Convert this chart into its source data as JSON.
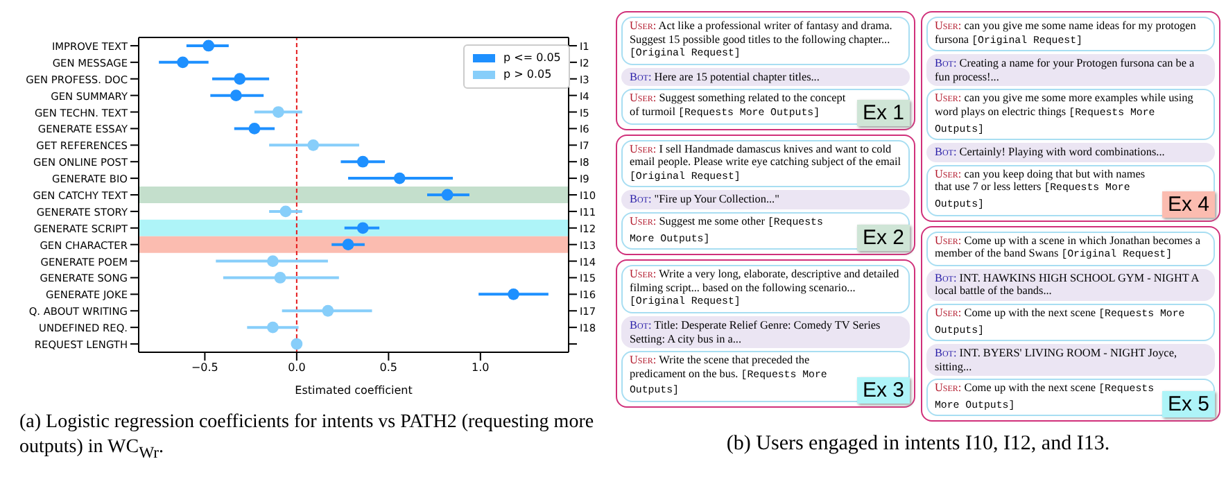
{
  "chart_data": [
    {
      "type": "scatter",
      "orientation": "horizontal",
      "categories": [
        "IMPROVE TEXT",
        "GEN MESSAGE",
        "GEN PROFESS. DOC",
        "GEN SUMMARY",
        "GEN TECHN. TEXT",
        "GENERATE ESSAY",
        "GET REFERENCES",
        "GEN ONLINE POST",
        "GENERATE BIO",
        "GEN CATCHY TEXT",
        "GENERATE STORY",
        "GENERATE SCRIPT",
        "GEN CHARACTER",
        "GENERATE POEM",
        "GENERATE SONG",
        "GENERATE JOKE",
        "Q. ABOUT WRITING",
        "UNDEFINED REQ.",
        "REQUEST LENGTH"
      ],
      "y2_categories": [
        "I1",
        "I2",
        "I3",
        "I4",
        "I5",
        "I6",
        "I7",
        "I8",
        "I9",
        "I10",
        "I11",
        "I12",
        "I13",
        "I14",
        "I15",
        "I16",
        "I17",
        "I18",
        null
      ],
      "series": [
        {
          "name": "p <= 0.05",
          "color": "#1e90ff",
          "values": [
            -0.48,
            -0.62,
            -0.31,
            -0.33,
            null,
            -0.23,
            null,
            0.36,
            0.56,
            0.82,
            null,
            0.36,
            0.28,
            null,
            null,
            1.18,
            null,
            null,
            null
          ],
          "errors": [
            [
              -0.6,
              -0.37
            ],
            [
              -0.75,
              -0.48
            ],
            [
              -0.46,
              -0.15
            ],
            [
              -0.47,
              -0.18
            ],
            null,
            [
              -0.34,
              -0.12
            ],
            null,
            [
              0.24,
              0.48
            ],
            [
              0.28,
              0.85
            ],
            [
              0.71,
              0.94
            ],
            null,
            [
              0.26,
              0.45
            ],
            [
              0.19,
              0.37
            ],
            null,
            null,
            [
              0.99,
              1.37
            ],
            null,
            null,
            null
          ]
        },
        {
          "name": "p > 0.05",
          "color": "#87cefa",
          "values": [
            null,
            null,
            null,
            null,
            -0.1,
            null,
            0.09,
            null,
            null,
            null,
            -0.06,
            null,
            null,
            -0.13,
            -0.09,
            null,
            0.17,
            -0.13,
            0
          ],
          "errors": [
            null,
            null,
            null,
            null,
            [
              -0.23,
              0.03
            ],
            null,
            [
              -0.15,
              0.34
            ],
            null,
            null,
            null,
            [
              -0.15,
              0.03
            ],
            null,
            null,
            [
              -0.44,
              0.17
            ],
            [
              -0.4,
              0.23
            ],
            null,
            [
              -0.08,
              0.41
            ],
            [
              -0.27,
              0.01
            ],
            null
          ]
        }
      ],
      "xlim": [
        -0.86,
        1.48
      ],
      "xticks": [
        {
          "value": -0.5,
          "label": "−0.5"
        },
        {
          "value": 0,
          "label": "0.0"
        },
        0.5,
        {
          "value": 1,
          "label": "1.0"
        }
      ],
      "xlabel": "Estimated coefficient",
      "marker": "circle",
      "legend": "top right",
      "ref_lines": [
        {
          "axis": "x",
          "value": 0,
          "color": "#e41a1c",
          "line_style": "dashed"
        }
      ],
      "bands": [
        {
          "axis": "y",
          "from": "GEN CATCHY TEXT",
          "to": "GEN CATCHY TEXT",
          "color": "#c4dfcc"
        },
        {
          "axis": "y",
          "from": "GENERATE SCRIPT",
          "to": "GENERATE SCRIPT",
          "color": "#aef4f8"
        },
        {
          "axis": "y",
          "from": "GEN CHARACTER",
          "to": "GEN CHARACTER",
          "color": "#fbbcb0"
        }
      ],
      "annotations": [
        "(a) Logistic regression coefficients for intents vs PATH2 (requesting more outputs) in WC$_{Wr}$."
      ]
    },
    {
      "type": "other",
      "title": "(b) Users engaged in intents I10, I12, and I13.",
      "annotations": [
        "User: Act like a professional writer of fantasy and drama. Suggest 15 possible good titles to the following chapter... [Original Request]",
        "Bot: Here are 15 potential chapter titles...",
        "User: Suggest something related to the concept of turmoil [Requests More Outputs]",
        "Ex 1",
        "User: I sell Handmade damascus knives and want to cold email people. Please write eye catching subject of the email [Original Request]",
        "Bot: \"Fire up Your Collection...\"",
        "User: Suggest me some other [Requests More Outputs]",
        "Ex 2",
        "User: Write a very long, elaborate, descriptive and detailed filming script... based on the following scenario... [Original Request]",
        "Bot: Title: Desperate Relief Genre: Comedy TV Series Setting: A city bus in a...",
        "User: Write the scene that preceded the predicament on the bus. [Requests More Outputs]",
        "Ex 3",
        "User: can you give me some name ideas for my protogen fursona [Original Request]",
        "Bot: Creating a name for your Protogen fursona can be a fun process!...",
        "User: can you give me some more examples while using word plays on electric things [Requests More Outputs]",
        "Bot: Certainly! Playing with word combinations...",
        "User: can you keep doing that but with names that use 7 or less letters [Requests More Outputs]",
        "Ex 4",
        "User: Come up with a scene in which Jonathan becomes a member of the band Swans [Original Request]",
        "Bot: INT. HAWKINS HIGH SCHOOL GYM - NIGHT A local battle of the bands...",
        "User: Come up with the next scene [Requests More Outputs]",
        "Bot: INT. BYERS' LIVING ROOM - NIGHT Joyce, sitting...",
        "User: Come up with the next scene [Requests More Outputs]",
        "Ex 5"
      ]
    }
  ]
}
